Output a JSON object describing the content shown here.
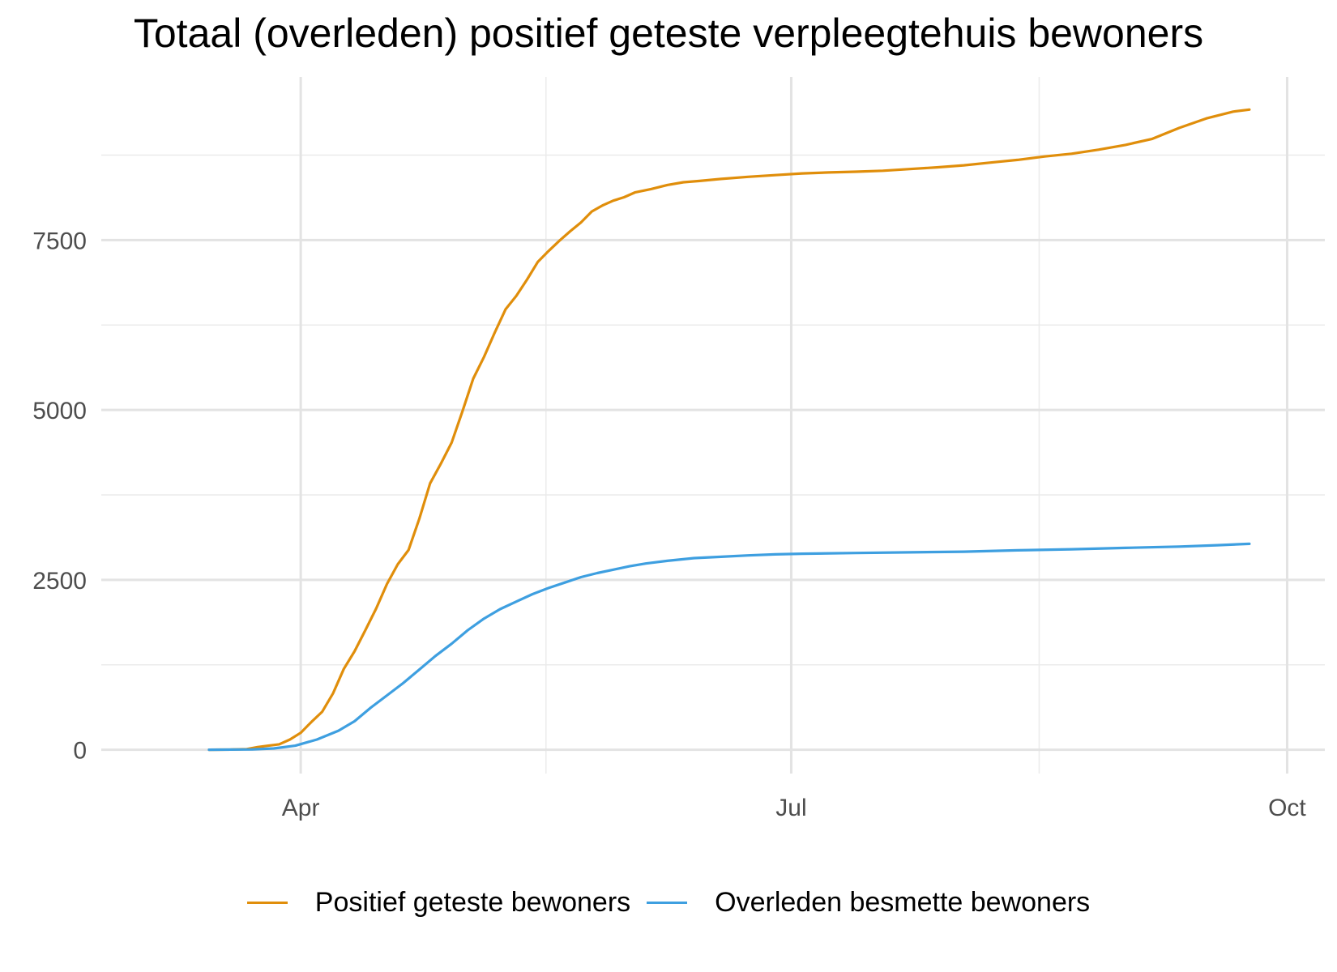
{
  "chart_data": {
    "type": "line",
    "title": "Totaal (overleden) positief geteste verpleegtehuis bewoners",
    "xlabel": "",
    "ylabel": "",
    "x_ticks": [
      {
        "label": "Apr",
        "day": 17
      },
      {
        "label": "Jul",
        "day": 108
      },
      {
        "label": "Oct",
        "day": 200
      }
    ],
    "x_minor_days": [
      62.5,
      154
    ],
    "y_ticks": [
      0,
      2500,
      5000,
      7500
    ],
    "y_minor": [
      1250,
      3750,
      6250,
      8750
    ],
    "xlim": [
      -20,
      207
    ],
    "ylim": [
      -350,
      9900
    ],
    "grid": true,
    "legend_position": "bottom",
    "series": [
      {
        "name": "Positief geteste bewoners",
        "color": "#E08E0B",
        "points": [
          [
            0,
            0
          ],
          [
            4,
            3
          ],
          [
            7,
            10
          ],
          [
            9,
            40
          ],
          [
            11,
            60
          ],
          [
            13,
            80
          ],
          [
            15,
            150
          ],
          [
            17,
            250
          ],
          [
            19,
            410
          ],
          [
            21,
            560
          ],
          [
            23,
            830
          ],
          [
            25,
            1190
          ],
          [
            27,
            1450
          ],
          [
            29,
            1760
          ],
          [
            31,
            2080
          ],
          [
            33,
            2440
          ],
          [
            35,
            2730
          ],
          [
            37,
            2940
          ],
          [
            39,
            3400
          ],
          [
            41,
            3920
          ],
          [
            43,
            4210
          ],
          [
            45,
            4520
          ],
          [
            47,
            4980
          ],
          [
            49,
            5460
          ],
          [
            51,
            5780
          ],
          [
            53,
            6140
          ],
          [
            55,
            6480
          ],
          [
            57,
            6680
          ],
          [
            59,
            6920
          ],
          [
            61,
            7180
          ],
          [
            63,
            7340
          ],
          [
            65,
            7490
          ],
          [
            67,
            7630
          ],
          [
            69,
            7760
          ],
          [
            71,
            7920
          ],
          [
            73,
            8010
          ],
          [
            75,
            8080
          ],
          [
            77,
            8130
          ],
          [
            79,
            8200
          ],
          [
            82,
            8250
          ],
          [
            85,
            8310
          ],
          [
            88,
            8350
          ],
          [
            91,
            8370
          ],
          [
            95,
            8400
          ],
          [
            100,
            8430
          ],
          [
            105,
            8455
          ],
          [
            110,
            8480
          ],
          [
            115,
            8495
          ],
          [
            120,
            8505
          ],
          [
            125,
            8520
          ],
          [
            130,
            8545
          ],
          [
            135,
            8570
          ],
          [
            140,
            8600
          ],
          [
            145,
            8640
          ],
          [
            150,
            8680
          ],
          [
            155,
            8730
          ],
          [
            160,
            8770
          ],
          [
            165,
            8830
          ],
          [
            170,
            8900
          ],
          [
            175,
            8990
          ],
          [
            180,
            9150
          ],
          [
            185,
            9290
          ],
          [
            190,
            9390
          ],
          [
            193,
            9420
          ]
        ]
      },
      {
        "name": "Overleden besmette bewoners",
        "color": "#3E9FE0",
        "points": [
          [
            0,
            0
          ],
          [
            8,
            5
          ],
          [
            12,
            20
          ],
          [
            16,
            60
          ],
          [
            20,
            150
          ],
          [
            24,
            280
          ],
          [
            27,
            420
          ],
          [
            30,
            620
          ],
          [
            33,
            800
          ],
          [
            36,
            980
          ],
          [
            39,
            1180
          ],
          [
            42,
            1380
          ],
          [
            45,
            1560
          ],
          [
            48,
            1760
          ],
          [
            51,
            1930
          ],
          [
            54,
            2070
          ],
          [
            57,
            2180
          ],
          [
            60,
            2290
          ],
          [
            63,
            2380
          ],
          [
            66,
            2460
          ],
          [
            69,
            2540
          ],
          [
            72,
            2600
          ],
          [
            75,
            2650
          ],
          [
            78,
            2700
          ],
          [
            81,
            2740
          ],
          [
            85,
            2780
          ],
          [
            90,
            2820
          ],
          [
            95,
            2840
          ],
          [
            100,
            2860
          ],
          [
            105,
            2875
          ],
          [
            110,
            2885
          ],
          [
            120,
            2895
          ],
          [
            130,
            2905
          ],
          [
            140,
            2915
          ],
          [
            150,
            2935
          ],
          [
            160,
            2950
          ],
          [
            170,
            2970
          ],
          [
            180,
            2990
          ],
          [
            187,
            3010
          ],
          [
            193,
            3030
          ]
        ]
      }
    ]
  }
}
